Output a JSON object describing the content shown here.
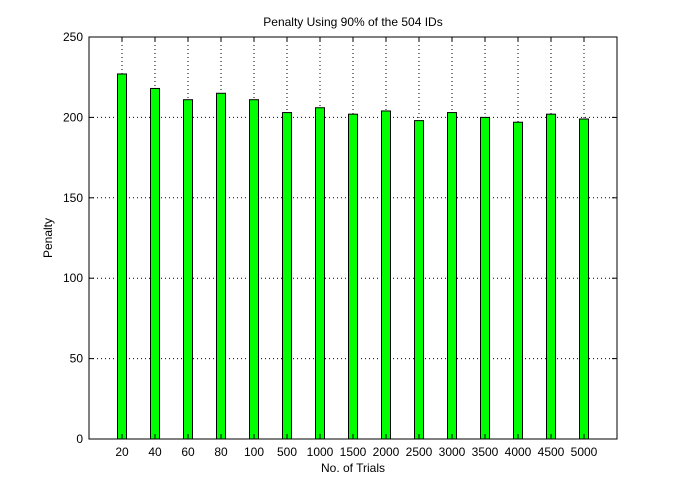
{
  "chart_data": {
    "type": "bar",
    "title": "Penalty Using 90% of the 504 IDs",
    "xlabel": "No. of Trials",
    "ylabel": "Penalty",
    "categories": [
      "20",
      "40",
      "60",
      "80",
      "100",
      "500",
      "1000",
      "1500",
      "2000",
      "2500",
      "3000",
      "3500",
      "4000",
      "4500",
      "5000"
    ],
    "values": [
      227,
      218,
      211,
      215,
      211,
      203,
      206,
      202,
      204,
      198,
      203,
      200,
      197,
      202,
      199
    ],
    "ylim": [
      0,
      250
    ],
    "yticks": [
      0,
      50,
      100,
      150,
      200,
      250
    ],
    "grid": true,
    "bar_color": "#00ff00",
    "bar_edge_color": "#000000"
  }
}
